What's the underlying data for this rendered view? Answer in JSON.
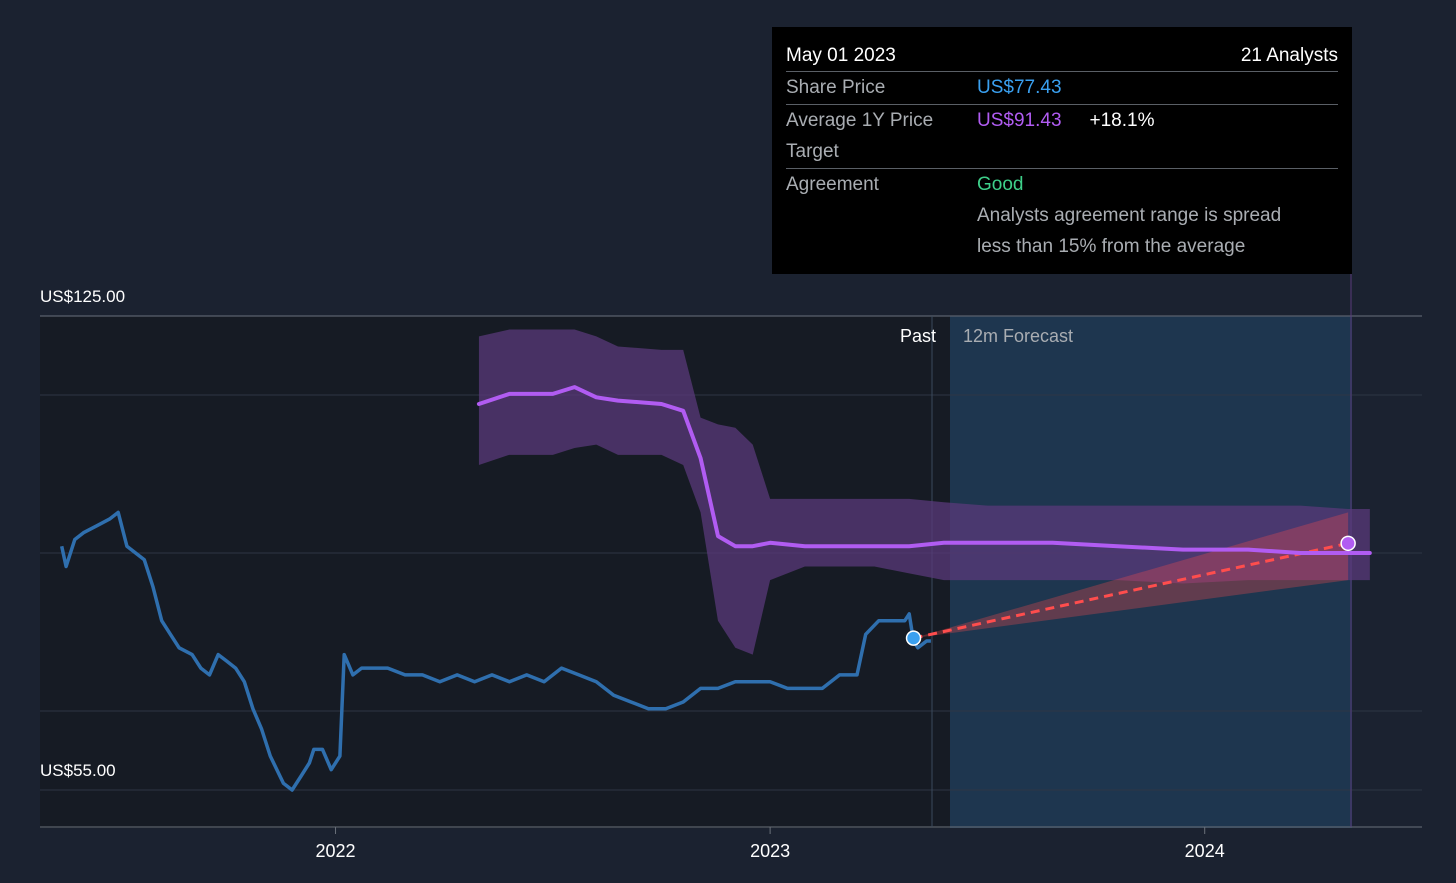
{
  "tooltip": {
    "date": "May 01 2023",
    "analysts": "21 Analysts",
    "share_price_label": "Share Price",
    "share_price_value": "US$77.43",
    "avg_target_label": "Average 1Y Price Target",
    "avg_target_value": "US$91.43",
    "avg_target_pct": "+18.1%",
    "agreement_label": "Agreement",
    "agreement_value": "Good",
    "agreement_note": "Analysts agreement range is spread less than 15% from the average"
  },
  "labels": {
    "past": "Past",
    "forecast": "12m Forecast"
  },
  "colors": {
    "background": "#1b2230",
    "price_line": "#2f6fae",
    "target_line": "#b15cf2",
    "target_band": "#5a3a7a",
    "forecast_region": "#1f3a55",
    "forecast_arrow": "#ff4d4d",
    "share_price_text": "#3aa0f0",
    "agreement_good": "#3ed08a"
  },
  "chart_data": {
    "type": "line",
    "y_tick_labels": [
      "US$125.00",
      "US$55.00"
    ],
    "ylim": [
      55,
      125
    ],
    "x_tick_labels": [
      "2022",
      "2023",
      "2024"
    ],
    "x_ticks": [
      2022.0,
      2023.0,
      2024.0
    ],
    "xlim": [
      2021.32,
      2024.5
    ],
    "grid": true,
    "past_end": 2023.33,
    "forecast_start": 2023.37,
    "forecast_end": 2024.33,
    "series": [
      {
        "type": "line",
        "x": [
          2021.37,
          2021.38,
          2021.4,
          2021.42,
          2021.45,
          2021.48,
          2021.5,
          2021.52,
          2021.54,
          2021.56,
          2021.58,
          2021.6,
          2021.62,
          2021.64,
          2021.67,
          2021.69,
          2021.71,
          2021.73,
          2021.75,
          2021.77,
          2021.79,
          2021.81,
          2021.83,
          2021.85,
          2021.88,
          2021.9,
          2021.92,
          2021.94,
          2021.95,
          2021.97,
          2021.99,
          2022.01,
          2022.02,
          2022.04,
          2022.06,
          2022.08,
          2022.12,
          2022.16,
          2022.2,
          2022.24,
          2022.28,
          2022.32,
          2022.36,
          2022.4,
          2022.44,
          2022.48,
          2022.52,
          2022.56,
          2022.6,
          2022.64,
          2022.68,
          2022.72,
          2022.76,
          2022.8,
          2022.84,
          2022.88,
          2022.92,
          2022.96,
          2023.0,
          2023.04,
          2023.08,
          2023.12,
          2023.16,
          2023.2,
          2023.22,
          2023.25,
          2023.28,
          2023.31,
          2023.32,
          2023.33,
          2023.34,
          2023.36,
          2023.37
        ],
        "values": [
          91,
          88,
          92,
          93,
          94,
          95,
          96,
          91,
          90,
          89,
          85,
          80,
          78,
          76,
          75,
          73,
          72,
          75,
          74,
          73,
          71,
          67,
          64,
          60,
          56,
          55,
          57,
          59,
          61,
          61,
          58,
          60,
          75,
          72,
          73,
          73,
          73,
          72,
          72,
          71,
          72,
          71,
          72,
          71,
          72,
          71,
          73,
          72,
          71,
          69,
          68,
          67,
          67,
          68,
          70,
          70,
          71,
          71,
          71,
          70,
          70,
          70,
          72,
          72,
          78,
          80,
          80,
          80,
          81,
          77,
          76,
          77,
          77
        ]
      },
      {
        "type": "line",
        "x": [
          2022.33,
          2022.4,
          2022.5,
          2022.55,
          2022.6,
          2022.65,
          2022.75,
          2022.8,
          2022.84,
          2022.88,
          2022.92,
          2022.96,
          2023.0,
          2023.08,
          2023.16,
          2023.24,
          2023.32,
          2023.4,
          2023.5,
          2023.65,
          2023.8,
          2023.95,
          2024.1,
          2024.22,
          2024.33,
          2024.38
        ],
        "values": [
          112,
          113.5,
          113.5,
          114.5,
          113,
          112.5,
          112,
          111,
          104,
          92.5,
          91,
          91,
          91.5,
          91,
          91,
          91,
          91,
          91.5,
          91.5,
          91.5,
          91,
          90.5,
          90.5,
          90,
          90,
          90
        ],
        "upper": [
          122,
          123,
          123,
          123,
          122,
          120.5,
          120,
          120,
          110,
          109,
          108.5,
          106,
          98,
          98,
          98,
          98,
          98,
          97.5,
          97,
          97,
          97,
          97,
          97,
          97,
          96.5,
          96.5
        ],
        "lower": [
          103,
          104.5,
          104.5,
          105.5,
          106,
          104.5,
          104.5,
          103,
          96,
          80,
          76,
          75,
          86,
          88,
          88,
          88,
          87,
          86,
          86,
          86,
          86,
          85.5,
          86,
          86,
          86,
          86
        ]
      }
    ]
  }
}
